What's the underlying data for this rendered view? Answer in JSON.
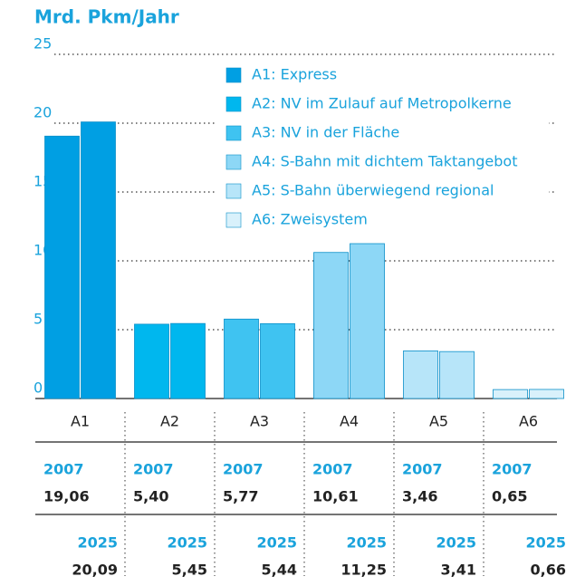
{
  "chart_data": {
    "type": "bar",
    "title": "Mrd. Pkm/Jahr",
    "categories": [
      "A1",
      "A2",
      "A3",
      "A4",
      "A5",
      "A6"
    ],
    "colors": [
      "#009fe3",
      "#00b7ee",
      "#3fc3f1",
      "#8dd7f6",
      "#b7e5f9",
      "#d9f1fb"
    ],
    "legend": [
      "A1: Express",
      "A2: NV im Zulauf auf Metropolkerne",
      "A3: NV in der Fläche",
      "A4: S-Bahn mit dichtem Taktangebot",
      "A5: S-Bahn überwiegend regional",
      "A6: Zweisystem"
    ],
    "series": [
      {
        "name": "2007",
        "values": [
          19.06,
          5.4,
          5.77,
          10.61,
          3.46,
          0.65
        ],
        "value_labels": [
          "19,06",
          "5,40",
          "5,77",
          "10,61",
          "3,46",
          "0,65"
        ]
      },
      {
        "name": "2025",
        "values": [
          20.09,
          5.45,
          5.44,
          11.25,
          3.41,
          0.66
        ],
        "value_labels": [
          "20,09",
          "5,45",
          "5,44",
          "11,25",
          "3,41",
          "0,66"
        ]
      }
    ],
    "ylim": [
      0,
      25
    ],
    "yticks": [
      0,
      5,
      10,
      15,
      20,
      25
    ],
    "grid": true
  }
}
